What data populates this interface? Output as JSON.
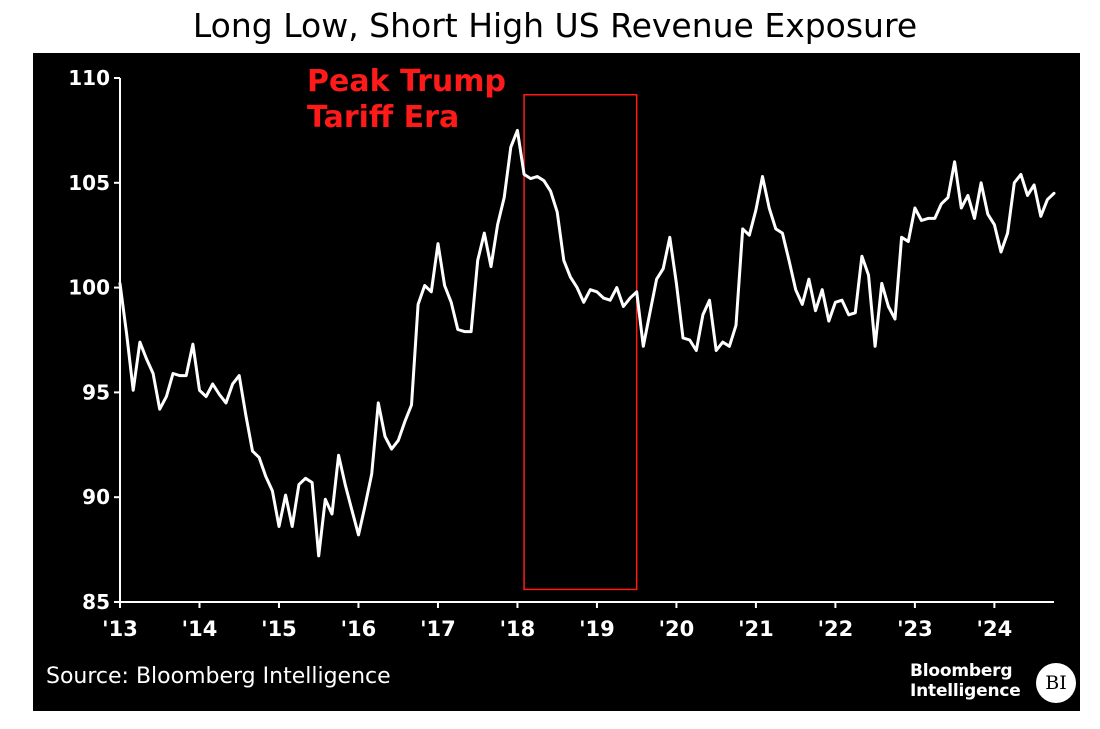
{
  "title": "Long Low, Short High US Revenue Exposure",
  "source": "Source: Bloomberg Intelligence",
  "brand": {
    "line1": "Bloomberg",
    "line2": "Intelligence",
    "mark": "BI"
  },
  "colors": {
    "background": "#000000",
    "line": "#ffffff",
    "annotation": "#ff1a1a",
    "axis": "#ffffff"
  },
  "chart_data": {
    "type": "line",
    "title": "Long Low, Short High US Revenue Exposure",
    "xlabel": "",
    "ylabel": "",
    "xlim": [
      "2013-01",
      "2024-10"
    ],
    "ylim": [
      85,
      110
    ],
    "yticks": [
      85,
      90,
      95,
      100,
      105,
      110
    ],
    "xtick_labels": [
      "'13",
      "'14",
      "'15",
      "'16",
      "'17",
      "'18",
      "'19",
      "'20",
      "'21",
      "'22",
      "'23",
      "'24"
    ],
    "xtick_years": [
      2013,
      2014,
      2015,
      2016,
      2017,
      2018,
      2019,
      2020,
      2021,
      2022,
      2023,
      2024
    ],
    "grid": false,
    "legend": "none",
    "annotation": {
      "text_lines": [
        "Peak Trump",
        "Tariff Era"
      ],
      "x_start": "2018-02",
      "x_end": "2019-07",
      "y_start": 85.6,
      "y_end": 109.2
    },
    "series": [
      {
        "points": [
          [
            "2013-01",
            100.2
          ],
          [
            "2013-02",
            97.8
          ],
          [
            "2013-03",
            95.1
          ],
          [
            "2013-04",
            97.4
          ],
          [
            "2013-05",
            96.6
          ],
          [
            "2013-06",
            95.9
          ],
          [
            "2013-07",
            94.2
          ],
          [
            "2013-08",
            94.8
          ],
          [
            "2013-09",
            95.9
          ],
          [
            "2013-10",
            95.8
          ],
          [
            "2013-11",
            95.8
          ],
          [
            "2013-12",
            97.3
          ],
          [
            "2014-01",
            95.1
          ],
          [
            "2014-02",
            94.8
          ],
          [
            "2014-03",
            95.4
          ],
          [
            "2014-04",
            94.9
          ],
          [
            "2014-05",
            94.5
          ],
          [
            "2014-06",
            95.4
          ],
          [
            "2014-07",
            95.8
          ],
          [
            "2014-08",
            93.9
          ],
          [
            "2014-09",
            92.2
          ],
          [
            "2014-10",
            91.9
          ],
          [
            "2014-11",
            91.0
          ],
          [
            "2014-12",
            90.3
          ],
          [
            "2015-01",
            88.6
          ],
          [
            "2015-02",
            90.1
          ],
          [
            "2015-03",
            88.6
          ],
          [
            "2015-04",
            90.6
          ],
          [
            "2015-05",
            90.9
          ],
          [
            "2015-06",
            90.7
          ],
          [
            "2015-07",
            87.2
          ],
          [
            "2015-08",
            89.9
          ],
          [
            "2015-09",
            89.2
          ],
          [
            "2015-10",
            92.0
          ],
          [
            "2015-11",
            90.6
          ],
          [
            "2015-12",
            89.4
          ],
          [
            "2016-01",
            88.2
          ],
          [
            "2016-02",
            89.6
          ],
          [
            "2016-03",
            91.1
          ],
          [
            "2016-04",
            94.5
          ],
          [
            "2016-05",
            92.9
          ],
          [
            "2016-06",
            92.3
          ],
          [
            "2016-07",
            92.7
          ],
          [
            "2016-08",
            93.6
          ],
          [
            "2016-09",
            94.4
          ],
          [
            "2016-10",
            99.2
          ],
          [
            "2016-11",
            100.1
          ],
          [
            "2016-12",
            99.8
          ],
          [
            "2017-01",
            102.1
          ],
          [
            "2017-02",
            100.1
          ],
          [
            "2017-03",
            99.3
          ],
          [
            "2017-04",
            98.0
          ],
          [
            "2017-05",
            97.9
          ],
          [
            "2017-06",
            97.9
          ],
          [
            "2017-07",
            101.3
          ],
          [
            "2017-08",
            102.6
          ],
          [
            "2017-09",
            101.0
          ],
          [
            "2017-10",
            103.0
          ],
          [
            "2017-11",
            104.3
          ],
          [
            "2017-12",
            106.7
          ],
          [
            "2018-01",
            107.5
          ],
          [
            "2018-02",
            105.4
          ],
          [
            "2018-03",
            105.2
          ],
          [
            "2018-04",
            105.3
          ],
          [
            "2018-05",
            105.1
          ],
          [
            "2018-06",
            104.6
          ],
          [
            "2018-07",
            103.6
          ],
          [
            "2018-08",
            101.3
          ],
          [
            "2018-09",
            100.5
          ],
          [
            "2018-10",
            100.0
          ],
          [
            "2018-11",
            99.3
          ],
          [
            "2018-12",
            99.9
          ],
          [
            "2019-01",
            99.8
          ],
          [
            "2019-02",
            99.5
          ],
          [
            "2019-03",
            99.4
          ],
          [
            "2019-04",
            100.0
          ],
          [
            "2019-05",
            99.1
          ],
          [
            "2019-06",
            99.5
          ],
          [
            "2019-07",
            99.8
          ],
          [
            "2019-08",
            97.2
          ],
          [
            "2019-09",
            98.8
          ],
          [
            "2019-10",
            100.4
          ],
          [
            "2019-11",
            100.9
          ],
          [
            "2019-12",
            102.4
          ],
          [
            "2020-01",
            100.2
          ],
          [
            "2020-02",
            97.6
          ],
          [
            "2020-03",
            97.5
          ],
          [
            "2020-04",
            97.0
          ],
          [
            "2020-05",
            98.7
          ],
          [
            "2020-06",
            99.4
          ],
          [
            "2020-07",
            97.0
          ],
          [
            "2020-08",
            97.4
          ],
          [
            "2020-09",
            97.2
          ],
          [
            "2020-10",
            98.2
          ],
          [
            "2020-11",
            102.8
          ],
          [
            "2020-12",
            102.5
          ],
          [
            "2021-01",
            103.7
          ],
          [
            "2021-02",
            105.3
          ],
          [
            "2021-03",
            103.8
          ],
          [
            "2021-04",
            102.8
          ],
          [
            "2021-05",
            102.6
          ],
          [
            "2021-06",
            101.3
          ],
          [
            "2021-07",
            99.9
          ],
          [
            "2021-08",
            99.2
          ],
          [
            "2021-09",
            100.4
          ],
          [
            "2021-10",
            98.9
          ],
          [
            "2021-11",
            99.9
          ],
          [
            "2021-12",
            98.4
          ],
          [
            "2022-01",
            99.3
          ],
          [
            "2022-02",
            99.4
          ],
          [
            "2022-03",
            98.7
          ],
          [
            "2022-04",
            98.8
          ],
          [
            "2022-05",
            101.5
          ],
          [
            "2022-06",
            100.6
          ],
          [
            "2022-07",
            97.2
          ],
          [
            "2022-08",
            100.2
          ],
          [
            "2022-09",
            99.1
          ],
          [
            "2022-10",
            98.5
          ],
          [
            "2022-11",
            102.4
          ],
          [
            "2022-12",
            102.2
          ],
          [
            "2023-01",
            103.8
          ],
          [
            "2023-02",
            103.2
          ],
          [
            "2023-03",
            103.3
          ],
          [
            "2023-04",
            103.3
          ],
          [
            "2023-05",
            104.0
          ],
          [
            "2023-06",
            104.3
          ],
          [
            "2023-07",
            106.0
          ],
          [
            "2023-08",
            103.8
          ],
          [
            "2023-09",
            104.4
          ],
          [
            "2023-10",
            103.3
          ],
          [
            "2023-11",
            105.0
          ],
          [
            "2023-12",
            103.5
          ],
          [
            "2024-01",
            103.0
          ],
          [
            "2024-02",
            101.7
          ],
          [
            "2024-03",
            102.6
          ],
          [
            "2024-04",
            105.0
          ],
          [
            "2024-05",
            105.4
          ],
          [
            "2024-06",
            104.4
          ],
          [
            "2024-07",
            104.9
          ],
          [
            "2024-08",
            103.4
          ],
          [
            "2024-09",
            104.2
          ],
          [
            "2024-10",
            104.5
          ]
        ]
      }
    ]
  }
}
